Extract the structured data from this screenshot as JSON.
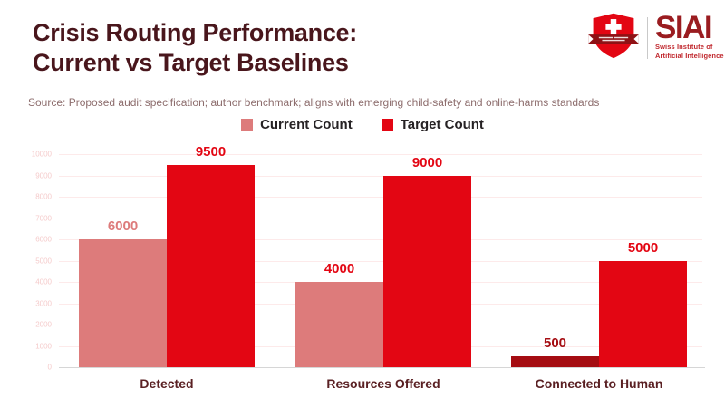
{
  "header": {
    "title_line1": "Crisis Routing Performance:",
    "title_line2": "Current vs Target Baselines",
    "source": "Source: Proposed audit specification; author benchmark; aligns with emerging child-safety and online-harms standards"
  },
  "logo": {
    "acronym": "SIAI",
    "name_line1": "Swiss Institute of",
    "name_line2": "Artificial Intelligence"
  },
  "legend": [
    {
      "label": "Current Count",
      "color": "#dd7b7b"
    },
    {
      "label": "Target Count",
      "color": "#e30613"
    }
  ],
  "chart_data": {
    "type": "bar",
    "title": "Crisis Routing Performance: Current vs Target Baselines",
    "categories": [
      "Detected",
      "Resources Offered",
      "Connected to Human"
    ],
    "series": [
      {
        "name": "Current Count",
        "values": [
          6000,
          4000,
          500
        ],
        "bar_colors": [
          "#dd7b7b",
          "#dd7b7b",
          "#a50d12"
        ],
        "label_colors": [
          "#dd7b7b",
          "#e30613",
          "#a50d12"
        ]
      },
      {
        "name": "Target Count",
        "values": [
          9500,
          9000,
          5000
        ],
        "bar_colors": [
          "#e30613",
          "#e30613",
          "#e30613"
        ],
        "label_colors": [
          "#e30613",
          "#e30613",
          "#e30613"
        ]
      }
    ],
    "xlabel": "",
    "ylabel": "",
    "ylim": [
      0,
      10000
    ],
    "ytick_step": 1000,
    "grid": true,
    "legend_position": "top-center",
    "value_labels": true
  },
  "colors": {
    "title": "#49161c",
    "source_text": "#8d6d6d",
    "legend_text": "#262224",
    "tick_label": "#f5cbcb",
    "gridline": "#fdeaea",
    "baseline": "#d6d6d6",
    "category_label": "#5a2023",
    "logo_acronym": "#9a1c20",
    "logo_subtitle": "#c0272d",
    "logo_red": "#e30613",
    "logo_ribbon": "#8f1115"
  }
}
